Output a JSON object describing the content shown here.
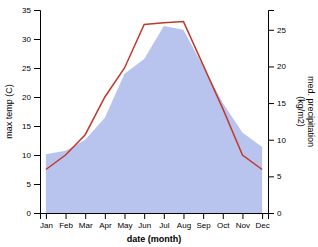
{
  "chart_data": {
    "type": "line",
    "categories": [
      "Jan",
      "Feb",
      "Mar",
      "Apr",
      "May",
      "Jun",
      "Jul",
      "Aug",
      "Sep",
      "Oct",
      "Nov",
      "Dec"
    ],
    "xlabel": "date (month)",
    "ylabel": "max temp (C)",
    "y2label": "med. precipitation\n(kg/m2)",
    "ylim": [
      0,
      35
    ],
    "yticks": [
      0,
      5,
      10,
      15,
      20,
      25,
      30,
      35
    ],
    "y2lim": [
      0,
      27.7
    ],
    "y2ticks": [
      0,
      5,
      10,
      15,
      20,
      25
    ],
    "series": [
      {
        "type": "area",
        "axis": "y2",
        "color": "#b8c4ee",
        "values": [
          8.0,
          8.5,
          10.0,
          13.0,
          19.0,
          21.0,
          25.5,
          25.0,
          20.0,
          15.0,
          11.0,
          9.0
        ]
      },
      {
        "type": "line",
        "color": "#c0392b",
        "values": [
          7.5,
          10.0,
          13.5,
          20.0,
          25.0,
          32.5,
          32.8,
          33.0,
          25.5,
          18.0,
          10.0,
          7.5
        ]
      }
    ]
  }
}
